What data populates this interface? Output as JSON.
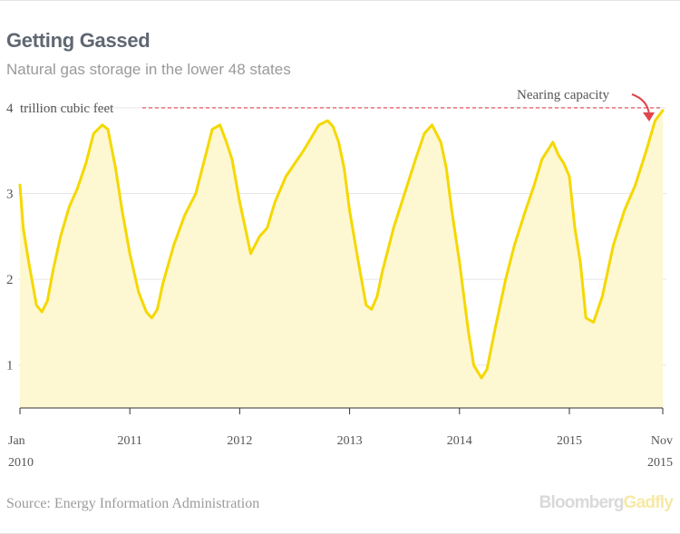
{
  "title": "Getting Gassed",
  "subtitle": "Natural gas storage in the lower 48 states",
  "source": "Source: Energy Information Administration",
  "brand": {
    "part1": "Bloomberg",
    "part2": "Gadfly"
  },
  "colors": {
    "line": "#f5d800",
    "fill": "#fdf7d2",
    "reference": "#e0464e",
    "grid": "#e6e6e6"
  },
  "chart_data": {
    "type": "area",
    "y_unit_label": "trillion cubic feet",
    "ylim": [
      0.5,
      4.2
    ],
    "yticks": [
      1,
      2,
      3,
      4
    ],
    "xlim": [
      2010.0,
      2015.85
    ],
    "grid": true,
    "x_tick_labels": [
      {
        "x": 2010.0,
        "line1": "Jan",
        "line2": "2010"
      },
      {
        "x": 2011.0,
        "line1": "2011",
        "line2": ""
      },
      {
        "x": 2012.0,
        "line1": "2012",
        "line2": ""
      },
      {
        "x": 2013.0,
        "line1": "2013",
        "line2": ""
      },
      {
        "x": 2014.0,
        "line1": "2014",
        "line2": ""
      },
      {
        "x": 2015.0,
        "line1": "2015",
        "line2": ""
      },
      {
        "x": 2015.85,
        "line1": "Nov",
        "line2": "2015"
      }
    ],
    "reference_line": {
      "y": 4.0,
      "label": "Nearing capacity"
    },
    "series": [
      {
        "x": [
          2010.0,
          2010.03,
          2010.08,
          2010.15,
          2010.2,
          2010.25,
          2010.3,
          2010.37,
          2010.45,
          2010.52,
          2010.6,
          2010.67,
          2010.75,
          2010.8,
          2010.87,
          2010.93,
          2011.0,
          2011.08,
          2011.15,
          2011.2,
          2011.25,
          2011.3,
          2011.4,
          2011.5,
          2011.6,
          2011.68,
          2011.75,
          2011.82,
          2011.88,
          2011.93,
          2012.0,
          2012.05,
          2012.1,
          2012.18,
          2012.25,
          2012.32,
          2012.42,
          2012.5,
          2012.58,
          2012.65,
          2012.72,
          2012.8,
          2012.85,
          2012.9,
          2012.95,
          2013.0,
          2013.08,
          2013.15,
          2013.2,
          2013.25,
          2013.3,
          2013.4,
          2013.5,
          2013.6,
          2013.68,
          2013.75,
          2013.83,
          2013.88,
          2013.93,
          2014.0,
          2014.08,
          2014.13,
          2014.2,
          2014.25,
          2014.32,
          2014.42,
          2014.5,
          2014.6,
          2014.68,
          2014.75,
          2014.85,
          2014.9,
          2014.95,
          2015.0,
          2015.05,
          2015.1,
          2015.15,
          2015.22,
          2015.3,
          2015.4,
          2015.5,
          2015.6,
          2015.7,
          2015.78,
          2015.85
        ],
        "y": [
          3.1,
          2.6,
          2.2,
          1.7,
          1.62,
          1.75,
          2.1,
          2.5,
          2.85,
          3.05,
          3.35,
          3.7,
          3.8,
          3.75,
          3.3,
          2.8,
          2.3,
          1.85,
          1.62,
          1.55,
          1.65,
          1.95,
          2.4,
          2.75,
          3.0,
          3.4,
          3.75,
          3.8,
          3.6,
          3.4,
          2.9,
          2.6,
          2.3,
          2.5,
          2.6,
          2.9,
          3.2,
          3.35,
          3.5,
          3.65,
          3.8,
          3.85,
          3.78,
          3.6,
          3.3,
          2.8,
          2.2,
          1.7,
          1.65,
          1.8,
          2.1,
          2.6,
          3.0,
          3.4,
          3.7,
          3.8,
          3.6,
          3.3,
          2.8,
          2.2,
          1.4,
          1.0,
          0.85,
          0.95,
          1.4,
          2.0,
          2.4,
          2.8,
          3.1,
          3.4,
          3.6,
          3.45,
          3.35,
          3.2,
          2.6,
          2.2,
          1.55,
          1.5,
          1.8,
          2.4,
          2.8,
          3.1,
          3.5,
          3.85,
          3.97
        ]
      }
    ]
  }
}
